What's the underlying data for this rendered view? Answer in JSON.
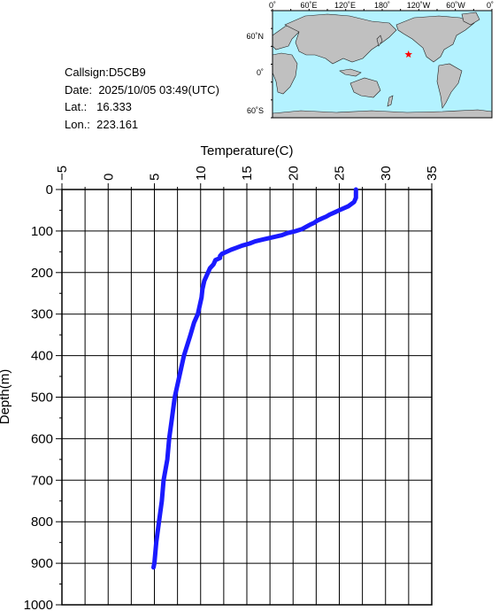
{
  "info": {
    "callsign_label": "Callsign:",
    "callsign": "D5CB9",
    "date_label": "Date:",
    "date": "2025/10/05 03:49(UTC)",
    "lat_label": "Lat.:",
    "lat": "16.333",
    "lon_label": "Lon.:",
    "lon": "223.161"
  },
  "map": {
    "top_labels": [
      "0˚",
      "60˚E",
      "120˚E",
      "180˚",
      "120˚W",
      "60˚W",
      "0˚"
    ],
    "left_labels": [
      "60˚N",
      "0˚",
      "60˚S"
    ],
    "ocean_color": "#b3f2ff",
    "land_color": "#c0c0c0",
    "marker_color": "#ff0000",
    "marker_icon": "star-icon"
  },
  "chart_data": {
    "type": "line",
    "xlabel": "Temperature(C)",
    "ylabel": "Depth(m)",
    "xlim": [
      -5,
      35
    ],
    "ylim": [
      1000,
      0
    ],
    "x_ticks": [
      "−5",
      "0",
      "5",
      "10",
      "15",
      "20",
      "25",
      "30",
      "35"
    ],
    "y_ticks": [
      "0",
      "100",
      "200",
      "300",
      "400",
      "500",
      "600",
      "700",
      "800",
      "900",
      "1000"
    ],
    "grid": true,
    "line_color": "#1a1aff",
    "series": [
      {
        "depth": [
          0,
          20,
          30,
          40,
          50,
          55,
          60,
          65,
          70,
          75,
          80,
          85,
          90,
          95,
          100,
          105,
          110,
          115,
          120,
          125,
          130,
          135,
          140,
          145,
          150,
          155,
          160,
          165,
          170,
          180,
          190,
          200,
          210,
          220,
          240,
          260,
          280,
          300,
          320,
          350,
          400,
          450,
          500,
          550,
          600,
          650,
          700,
          750,
          800,
          850,
          900,
          910
        ],
        "temperature": [
          26.8,
          26.8,
          26.6,
          26.0,
          25.0,
          24.5,
          24.0,
          23.6,
          23.1,
          22.6,
          22.3,
          21.8,
          21.4,
          21.0,
          20.3,
          19.4,
          18.8,
          17.8,
          16.8,
          15.9,
          15.3,
          14.5,
          13.9,
          13.3,
          12.8,
          12.3,
          12.1,
          12.1,
          11.6,
          11.4,
          11.0,
          10.8,
          10.6,
          10.4,
          10.2,
          10.1,
          9.9,
          9.7,
          9.3,
          8.9,
          8.2,
          7.7,
          7.2,
          6.9,
          6.6,
          6.4,
          6.0,
          5.8,
          5.5,
          5.2,
          5.0,
          4.9
        ]
      }
    ]
  }
}
